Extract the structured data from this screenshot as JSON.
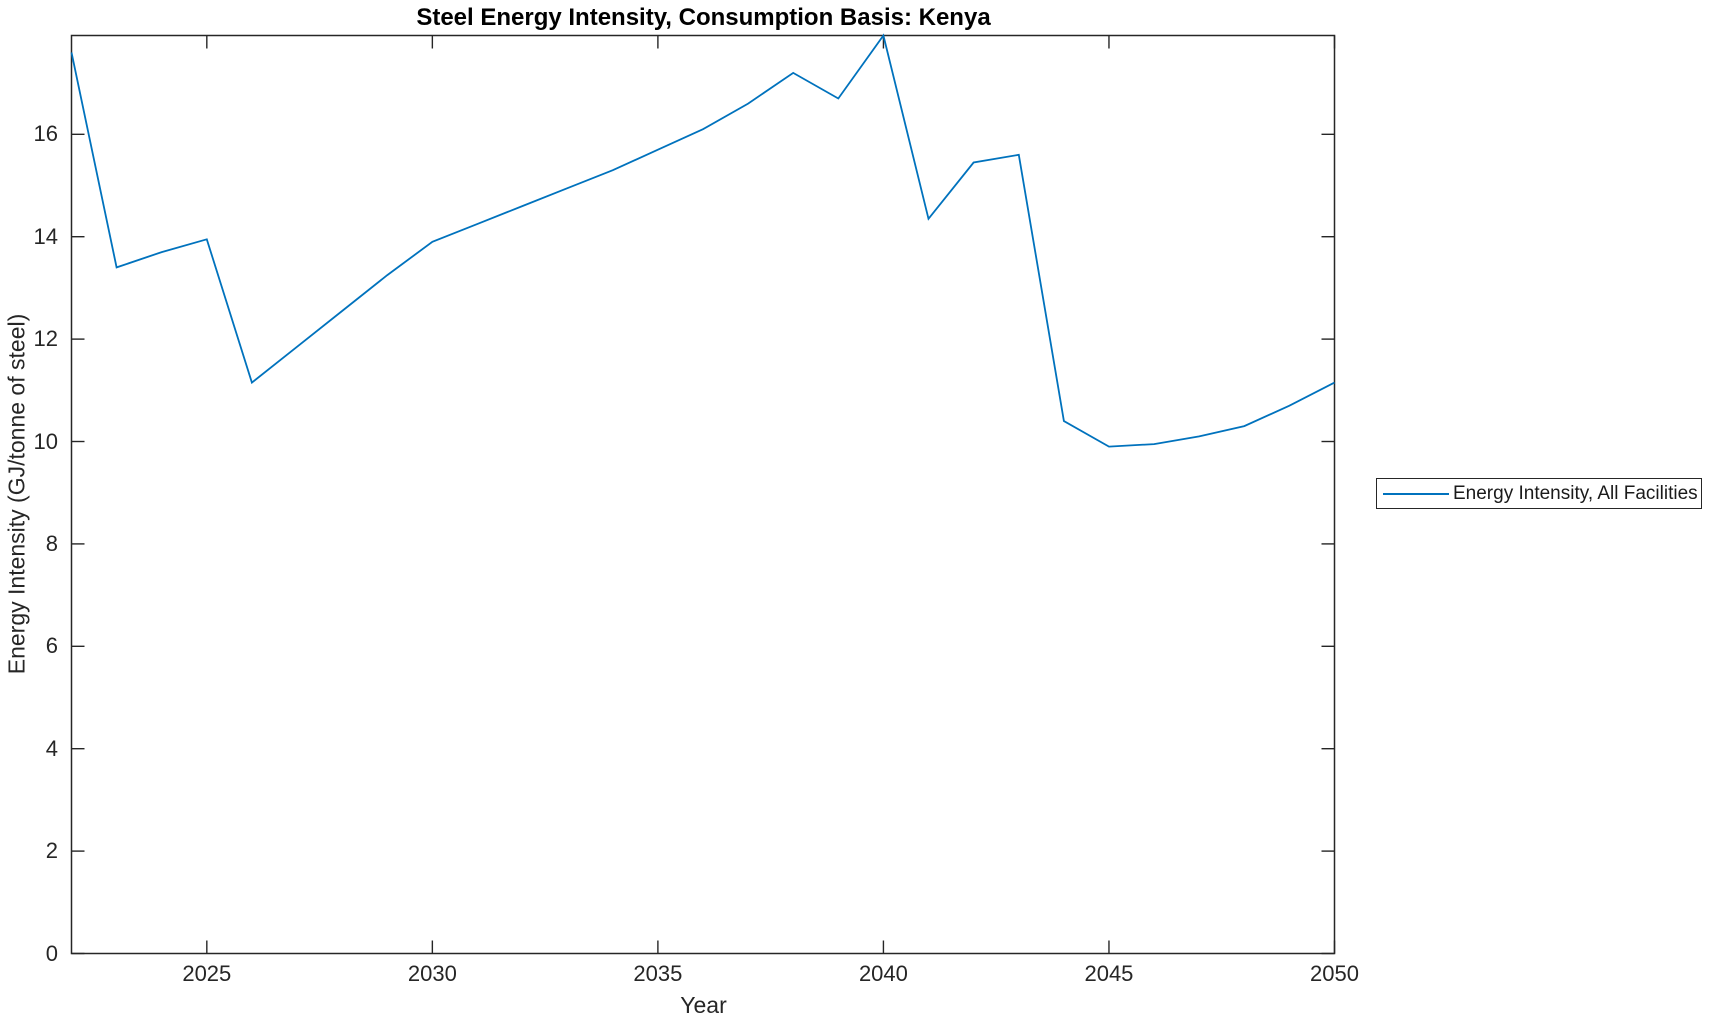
{
  "chart_data": {
    "type": "line",
    "title": "Steel Energy Intensity, Consumption Basis: Kenya",
    "xlabel": "Year",
    "ylabel": "Energy Intensity (GJ/tonne of steel)",
    "legend": [
      "Energy Intensity, All Facilities"
    ],
    "legend_position": "outside-right",
    "grid": false,
    "line_color": "#0072BD",
    "axis_color": "#262626",
    "xlim": [
      2022,
      2050
    ],
    "ylim": [
      0,
      17.93
    ],
    "x_ticks": [
      2025,
      2030,
      2035,
      2040,
      2045,
      2050
    ],
    "y_ticks": [
      0,
      2,
      4,
      6,
      8,
      10,
      12,
      14,
      16
    ],
    "series": [
      {
        "name": "Energy Intensity, All Facilities",
        "x": [
          2022,
          2023,
          2024,
          2025,
          2026,
          2027,
          2028,
          2029,
          2030,
          2031,
          2032,
          2033,
          2034,
          2035,
          2036,
          2037,
          2038,
          2039,
          2040,
          2041,
          2042,
          2043,
          2044,
          2045,
          2046,
          2047,
          2048,
          2049,
          2050
        ],
        "y": [
          17.6,
          13.4,
          13.7,
          13.95,
          11.15,
          11.85,
          12.55,
          13.25,
          13.9,
          14.25,
          14.6,
          14.95,
          15.3,
          15.7,
          16.1,
          16.6,
          17.2,
          16.7,
          17.93,
          14.35,
          15.45,
          15.6,
          10.4,
          9.9,
          9.95,
          10.1,
          10.3,
          10.7,
          11.15
        ]
      }
    ]
  }
}
